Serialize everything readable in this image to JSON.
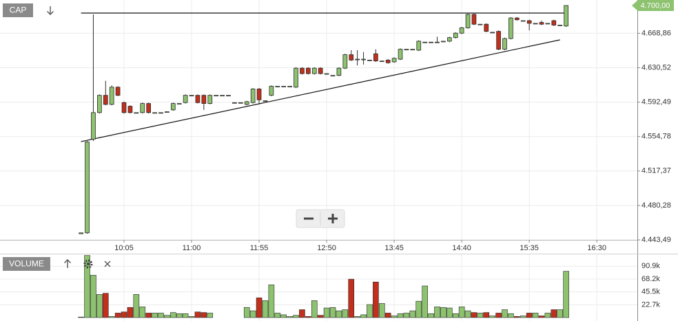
{
  "chart_data": {
    "type": "candlestick",
    "title": "CAP",
    "log_scale": true,
    "grid": true,
    "colors": {
      "up": "#8dc26f",
      "down": "#c0301c",
      "outline": "#2b2b2b",
      "trendline": "#111111"
    },
    "x": [
      "09:30",
      "09:35",
      "09:40",
      "09:45",
      "09:50",
      "09:55",
      "10:00",
      "10:05",
      "10:10",
      "10:15",
      "10:20",
      "10:25",
      "10:30",
      "10:35",
      "10:40",
      "10:45",
      "10:50",
      "10:55",
      "11:00",
      "11:05",
      "11:10",
      "11:15",
      "11:20",
      "11:25",
      "11:30",
      "11:35",
      "11:40",
      "11:45",
      "11:50",
      "11:55",
      "12:00",
      "12:05",
      "12:10",
      "12:15",
      "12:20",
      "12:25",
      "12:30",
      "12:35",
      "12:40",
      "12:45",
      "12:50",
      "12:55",
      "13:00",
      "13:05",
      "13:10",
      "13:15",
      "13:20",
      "13:25",
      "13:30",
      "13:35",
      "13:40",
      "13:45",
      "13:50",
      "13:55",
      "14:00",
      "14:05",
      "14:10",
      "14:15",
      "14:20",
      "14:25",
      "14:30",
      "14:35",
      "14:40",
      "14:45",
      "14:50",
      "14:55",
      "15:00",
      "15:05",
      "15:10",
      "15:15",
      "15:20",
      "15:25",
      "15:30",
      "15:35",
      "15:40",
      "15:45",
      "15:50",
      "15:55",
      "16:00",
      "16:05"
    ],
    "open": [
      4450,
      4451,
      4552,
      4581,
      4600,
      4590,
      4609,
      4592,
      4588,
      4581,
      4581,
      4591,
      4581,
      4581,
      4582,
      4584,
      4591,
      4592,
      4600,
      4600,
      4600,
      4591,
      4600,
      4600,
      4600,
      4592,
      4592,
      4590,
      4592,
      4607,
      4594,
      4600,
      4610,
      4610,
      4610,
      4609,
      4630,
      4630,
      4624,
      4630,
      4624,
      4622,
      4622,
      4630,
      4645,
      4640,
      4640,
      4639,
      4646,
      4638,
      4639,
      4637,
      4640,
      4651,
      4651,
      4650,
      4659,
      4659,
      4659,
      4660,
      4660,
      4664,
      4669,
      4675,
      4690,
      4679,
      4679,
      4670,
      4671,
      4651,
      4663,
      4686,
      4683,
      4683,
      4680,
      4681,
      4680,
      4683,
      4678,
      4677
    ],
    "high": [
      4451,
      4550,
      4690,
      4601,
      4616,
      4611,
      4610,
      4593,
      4589,
      4581,
      4592,
      4592,
      4581,
      4581,
      4582,
      4592,
      4591,
      4601,
      4600,
      4601,
      4601,
      4601,
      4600,
      4600,
      4600,
      4592,
      4592,
      4594,
      4608,
      4608,
      4594,
      4611,
      4610,
      4610,
      4610,
      4631,
      4631,
      4631,
      4631,
      4631,
      4624,
      4622,
      4631,
      4646,
      4650,
      4650,
      4648,
      4639,
      4651,
      4638,
      4640,
      4642,
      4652,
      4651,
      4651,
      4661,
      4659,
      4659,
      4665,
      4660,
      4665,
      4670,
      4676,
      4691,
      4691,
      4679,
      4680,
      4670,
      4672,
      4664,
      4687,
      4687,
      4683,
      4684,
      4680,
      4683,
      4680,
      4684,
      4678,
      4700
    ],
    "low": [
      4450,
      4450,
      4550,
      4580,
      4589,
      4589,
      4599,
      4580,
      4580,
      4581,
      4580,
      4580,
      4581,
      4581,
      4582,
      4583,
      4591,
      4591,
      4600,
      4591,
      4584,
      4590,
      4600,
      4600,
      4600,
      4592,
      4592,
      4589,
      4591,
      4590,
      4594,
      4599,
      4610,
      4610,
      4610,
      4608,
      4623,
      4623,
      4623,
      4623,
      4624,
      4622,
      4621,
      4629,
      4638,
      4633,
      4634,
      4639,
      4637,
      4638,
      4635,
      4636,
      4639,
      4651,
      4651,
      4649,
      4659,
      4659,
      4658,
      4660,
      4659,
      4663,
      4668,
      4674,
      4678,
      4679,
      4670,
      4670,
      4650,
      4650,
      4662,
      4683,
      4683,
      4672,
      4680,
      4678,
      4680,
      4677,
      4678,
      4676
    ],
    "close": [
      4451,
      4549,
      4581,
      4600,
      4590,
      4609,
      4600,
      4581,
      4581,
      4581,
      4591,
      4581,
      4581,
      4581,
      4582,
      4591,
      4591,
      4600,
      4600,
      4592,
      4591,
      4600,
      4600,
      4600,
      4600,
      4592,
      4592,
      4593,
      4607,
      4595,
      4594,
      4610,
      4610,
      4610,
      4610,
      4630,
      4624,
      4624,
      4630,
      4624,
      4624,
      4622,
      4630,
      4645,
      4639,
      4640,
      4640,
      4639,
      4638,
      4638,
      4636,
      4641,
      4651,
      4651,
      4651,
      4660,
      4659,
      4659,
      4659,
      4660,
      4664,
      4669,
      4675,
      4690,
      4679,
      4679,
      4671,
      4670,
      4651,
      4663,
      4686,
      4684,
      4683,
      4680,
      4680,
      4679,
      4680,
      4678,
      4678,
      4700
    ],
    "xlim": [
      "08:24",
      "17:03"
    ],
    "xticks": [
      "10:05",
      "11:00",
      "11:55",
      "12:50",
      "13:45",
      "14:40",
      "15:35",
      "16:30"
    ],
    "ylim": [
      4443.49,
      4706.2
    ],
    "yticks": [
      {
        "value": 4443.49,
        "label": "4.443,49"
      },
      {
        "value": 4480.28,
        "label": "4.480,28"
      },
      {
        "value": 4517.37,
        "label": "4.517,37"
      },
      {
        "value": 4554.78,
        "label": "4.554,78"
      },
      {
        "value": 4592.49,
        "label": "4.592,49"
      },
      {
        "value": 4630.52,
        "label": "4.630,52"
      },
      {
        "value": 4668.86,
        "label": "4.668,86"
      }
    ],
    "last_price": {
      "value": 4700,
      "label": "4.700,00"
    },
    "trendlines": [
      {
        "x": [
          "09:30",
          "16:05"
        ],
        "y": [
          4691.5,
          4691.5
        ]
      },
      {
        "x": [
          "09:30",
          "16:00"
        ],
        "y": [
          4549.3,
          4661.5
        ]
      }
    ],
    "volume": {
      "title": "VOLUME",
      "values": [
        1000,
        110000,
        75000,
        41000,
        43000,
        2000,
        8000,
        10000,
        18000,
        41000,
        19000,
        8000,
        8000,
        8000,
        4000,
        9000,
        7000,
        7000,
        2000,
        10000,
        9000,
        8000,
        0,
        0,
        0,
        0,
        0,
        18000,
        12000,
        35000,
        30000,
        58000,
        8000,
        5000,
        2000,
        4000,
        14000,
        2000,
        30000,
        4000,
        17000,
        18000,
        12000,
        14000,
        68000,
        2000,
        5000,
        23000,
        63000,
        25000,
        8000,
        3000,
        7000,
        8000,
        12000,
        29000,
        56000,
        7000,
        19000,
        18000,
        17000,
        7000,
        19000,
        12000,
        9000,
        8000,
        9000,
        3000,
        8000,
        14000,
        7000,
        2000,
        3000,
        8000,
        8000,
        3000,
        8000,
        14000,
        14000,
        82000
      ],
      "ylim": [
        0,
        112000
      ],
      "yticks": [
        {
          "value": 22700,
          "label": "22.7k"
        },
        {
          "value": 45500,
          "label": "45.5k"
        },
        {
          "value": 68200,
          "label": "68.2k"
        },
        {
          "value": 90900,
          "label": "90.9k"
        }
      ]
    }
  }
}
